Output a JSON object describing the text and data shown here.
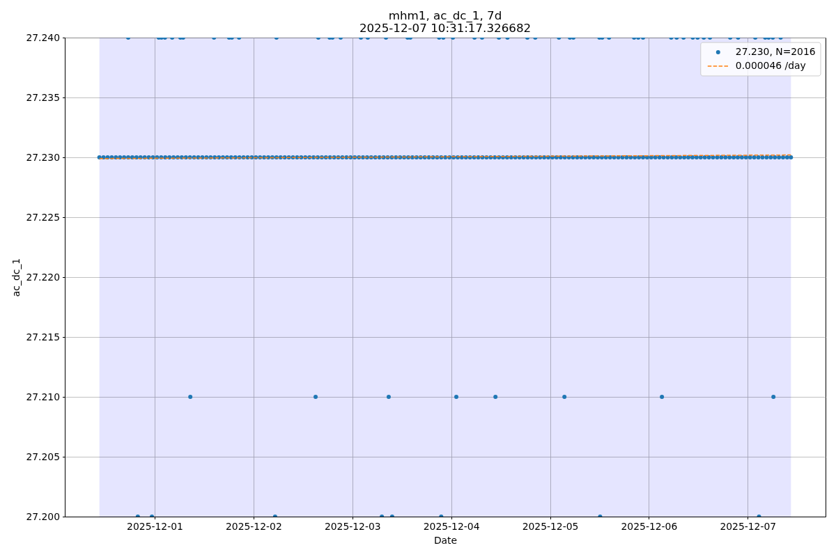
{
  "chart_data": {
    "type": "scatter",
    "title": "mhm1, ac_dc_1, 7d",
    "subtitle": "2025-12-07 10:31:17.326682",
    "xlabel": "Date",
    "ylabel": "ac_dc_1",
    "xlim": [
      "2025-11-30T02:11",
      "2025-12-07T18:54"
    ],
    "ylim": [
      27.2,
      27.24
    ],
    "xticks": [
      "2025-12-01",
      "2025-12-02",
      "2025-12-03",
      "2025-12-04",
      "2025-12-05",
      "2025-12-06",
      "2025-12-07"
    ],
    "yticks": [
      {
        "value": 27.2,
        "label": "27.200"
      },
      {
        "value": 27.205,
        "label": "27.205"
      },
      {
        "value": 27.21,
        "label": "27.210"
      },
      {
        "value": 27.215,
        "label": "27.215"
      },
      {
        "value": 27.22,
        "label": "27.220"
      },
      {
        "value": 27.225,
        "label": "27.225"
      },
      {
        "value": 27.23,
        "label": "27.230"
      },
      {
        "value": 27.235,
        "label": "27.235"
      },
      {
        "value": 27.24,
        "label": "27.240"
      }
    ],
    "grid": true,
    "legend": "top right",
    "bands": [
      {
        "axis": "x",
        "from": "2025-11-30T10:35",
        "to": "2025-12-07T10:30",
        "color": "#e5e5ff"
      }
    ],
    "series": [
      {
        "name": "27.230, N=2016",
        "color": "#1f77b4",
        "marker": "circle",
        "x": [
          "2025-11-30T10:35",
          "2025-11-30T11:35",
          "2025-11-30T12:35",
          "2025-11-30T13:35",
          "2025-11-30T14:35",
          "2025-11-30T15:35",
          "2025-11-30T16:35",
          "2025-11-30T17:35",
          "2025-11-30T18:35",
          "2025-11-30T19:35",
          "2025-11-30T20:35",
          "2025-11-30T21:35",
          "2025-11-30T22:35",
          "2025-11-30T23:35",
          "2025-12-01T00:35",
          "2025-12-01T01:35",
          "2025-12-01T02:35",
          "2025-12-01T03:35",
          "2025-12-01T04:35",
          "2025-12-01T05:35",
          "2025-12-01T06:35",
          "2025-12-01T07:35",
          "2025-12-01T08:35",
          "2025-12-01T09:35",
          "2025-12-01T10:35",
          "2025-12-01T11:35",
          "2025-12-01T12:35",
          "2025-12-01T13:35",
          "2025-12-01T14:35",
          "2025-12-01T15:35",
          "2025-12-01T16:35",
          "2025-12-01T17:35",
          "2025-12-01T18:35",
          "2025-12-01T19:35",
          "2025-12-01T20:35",
          "2025-12-01T21:35",
          "2025-12-01T22:35",
          "2025-12-01T23:35",
          "2025-12-02T00:35",
          "2025-12-02T01:35",
          "2025-12-02T02:35",
          "2025-12-02T03:35",
          "2025-12-02T04:35",
          "2025-12-02T05:35",
          "2025-12-02T06:35",
          "2025-12-02T07:35",
          "2025-12-02T08:35",
          "2025-12-02T09:35",
          "2025-12-02T10:35",
          "2025-12-02T11:35",
          "2025-12-02T12:35",
          "2025-12-02T13:35",
          "2025-12-02T14:35",
          "2025-12-02T15:35",
          "2025-12-02T16:35",
          "2025-12-02T17:35",
          "2025-12-02T18:35",
          "2025-12-02T19:35",
          "2025-12-02T20:35",
          "2025-12-02T21:35",
          "2025-12-02T22:35",
          "2025-12-02T23:35",
          "2025-12-03T00:35",
          "2025-12-03T01:35",
          "2025-12-03T02:35",
          "2025-12-03T03:35",
          "2025-12-03T04:35",
          "2025-12-03T05:35",
          "2025-12-03T06:35",
          "2025-12-03T07:35",
          "2025-12-03T08:35",
          "2025-12-03T09:35",
          "2025-12-03T10:35",
          "2025-12-03T11:35",
          "2025-12-03T12:35",
          "2025-12-03T13:35",
          "2025-12-03T14:35",
          "2025-12-03T15:35",
          "2025-12-03T16:35",
          "2025-12-03T17:35",
          "2025-12-03T18:35",
          "2025-12-03T19:35",
          "2025-12-03T20:35",
          "2025-12-03T21:35",
          "2025-12-03T22:35",
          "2025-12-03T23:35",
          "2025-12-04T00:35",
          "2025-12-04T01:35",
          "2025-12-04T02:35",
          "2025-12-04T03:35",
          "2025-12-04T04:35",
          "2025-12-04T05:35",
          "2025-12-04T06:35",
          "2025-12-04T07:35",
          "2025-12-04T08:35",
          "2025-12-04T09:35",
          "2025-12-04T10:35",
          "2025-12-04T11:35",
          "2025-12-04T12:35",
          "2025-12-04T13:35",
          "2025-12-04T14:35",
          "2025-12-04T15:35",
          "2025-12-04T16:35",
          "2025-12-04T17:35",
          "2025-12-04T18:35",
          "2025-12-04T19:35",
          "2025-12-04T20:35",
          "2025-12-04T21:35",
          "2025-12-04T22:35",
          "2025-12-04T23:35",
          "2025-12-05T00:35",
          "2025-12-05T01:35",
          "2025-12-05T02:35",
          "2025-12-05T03:35",
          "2025-12-05T04:35",
          "2025-12-05T05:35",
          "2025-12-05T06:35",
          "2025-12-05T07:35",
          "2025-12-05T08:35",
          "2025-12-05T09:35",
          "2025-12-05T10:35",
          "2025-12-05T11:35",
          "2025-12-05T12:35",
          "2025-12-05T13:35",
          "2025-12-05T14:35",
          "2025-12-05T15:35",
          "2025-12-05T16:35",
          "2025-12-05T17:35",
          "2025-12-05T18:35",
          "2025-12-05T19:35",
          "2025-12-05T20:35",
          "2025-12-05T21:35",
          "2025-12-05T22:35",
          "2025-12-05T23:35",
          "2025-12-06T00:35",
          "2025-12-06T01:35",
          "2025-12-06T02:35",
          "2025-12-06T03:35",
          "2025-12-06T04:35",
          "2025-12-06T05:35",
          "2025-12-06T06:35",
          "2025-12-06T07:35",
          "2025-12-06T08:35",
          "2025-12-06T09:35",
          "2025-12-06T10:35",
          "2025-12-06T11:35",
          "2025-12-06T12:35",
          "2025-12-06T13:35",
          "2025-12-06T14:35",
          "2025-12-06T15:35",
          "2025-12-06T16:35",
          "2025-12-06T17:35",
          "2025-12-06T18:35",
          "2025-12-06T19:35",
          "2025-12-06T20:35",
          "2025-12-06T21:35",
          "2025-12-06T22:35",
          "2025-12-06T23:35",
          "2025-12-07T00:35",
          "2025-12-07T01:35",
          "2025-12-07T02:35",
          "2025-12-07T03:35",
          "2025-12-07T04:35",
          "2025-12-07T05:35",
          "2025-12-07T06:35",
          "2025-12-07T07:35",
          "2025-12-07T08:35",
          "2025-12-07T09:35",
          "2025-12-07T10:30",
          "2025-11-30T17:35",
          "2025-12-01T01:00",
          "2025-12-01T01:40",
          "2025-12-01T02:30",
          "2025-12-01T04:15",
          "2025-12-01T06:15",
          "2025-12-01T06:55",
          "2025-12-01T14:25",
          "2025-12-01T18:05",
          "2025-12-01T18:45",
          "2025-12-01T20:30",
          "2025-12-02T05:35",
          "2025-12-02T15:45",
          "2025-12-02T18:30",
          "2025-12-02T19:10",
          "2025-12-02T21:10",
          "2025-12-03T02:05",
          "2025-12-03T03:45",
          "2025-12-03T08:10",
          "2025-12-03T13:25",
          "2025-12-03T14:05",
          "2025-12-03T21:05",
          "2025-12-03T22:05",
          "2025-12-04T00:25",
          "2025-12-04T05:40",
          "2025-12-04T07:30",
          "2025-12-04T11:35",
          "2025-12-04T13:40",
          "2025-12-04T18:30",
          "2025-12-04T20:25",
          "2025-12-05T02:10",
          "2025-12-05T04:50",
          "2025-12-05T05:40",
          "2025-12-05T12:00",
          "2025-12-05T12:40",
          "2025-12-05T14:20",
          "2025-12-05T20:25",
          "2025-12-05T21:25",
          "2025-12-05T22:35",
          "2025-12-06T05:25",
          "2025-12-06T06:45",
          "2025-12-06T08:25",
          "2025-12-06T10:40",
          "2025-12-06T11:50",
          "2025-12-06T13:20",
          "2025-12-06T14:50",
          "2025-12-06T19:45",
          "2025-12-06T21:40",
          "2025-12-07T01:50",
          "2025-12-07T04:15",
          "2025-12-07T05:05",
          "2025-12-07T06:05",
          "2025-12-07T08:00",
          "2025-12-01T08:40",
          "2025-12-02T15:05",
          "2025-12-03T08:50",
          "2025-12-04T01:15",
          "2025-12-04T10:45",
          "2025-12-05T03:30",
          "2025-12-06T03:10",
          "2025-12-07T06:15",
          "2025-11-30T19:55",
          "2025-11-30T23:20",
          "2025-12-02T05:15",
          "2025-12-03T07:10",
          "2025-12-03T09:40",
          "2025-12-03T21:35",
          "2025-12-05T12:10",
          "2025-12-07T02:45"
        ],
        "values": [
          27.23,
          27.23,
          27.23,
          27.23,
          27.23,
          27.23,
          27.23,
          27.23,
          27.23,
          27.23,
          27.23,
          27.23,
          27.23,
          27.23,
          27.23,
          27.23,
          27.23,
          27.23,
          27.23,
          27.23,
          27.23,
          27.23,
          27.23,
          27.23,
          27.23,
          27.23,
          27.23,
          27.23,
          27.23,
          27.23,
          27.23,
          27.23,
          27.23,
          27.23,
          27.23,
          27.23,
          27.23,
          27.23,
          27.23,
          27.23,
          27.23,
          27.23,
          27.23,
          27.23,
          27.23,
          27.23,
          27.23,
          27.23,
          27.23,
          27.23,
          27.23,
          27.23,
          27.23,
          27.23,
          27.23,
          27.23,
          27.23,
          27.23,
          27.23,
          27.23,
          27.23,
          27.23,
          27.23,
          27.23,
          27.23,
          27.23,
          27.23,
          27.23,
          27.23,
          27.23,
          27.23,
          27.23,
          27.23,
          27.23,
          27.23,
          27.23,
          27.23,
          27.23,
          27.23,
          27.23,
          27.23,
          27.23,
          27.23,
          27.23,
          27.23,
          27.23,
          27.23,
          27.23,
          27.23,
          27.23,
          27.23,
          27.23,
          27.23,
          27.23,
          27.23,
          27.23,
          27.23,
          27.23,
          27.23,
          27.23,
          27.23,
          27.23,
          27.23,
          27.23,
          27.23,
          27.23,
          27.23,
          27.23,
          27.23,
          27.23,
          27.23,
          27.23,
          27.23,
          27.23,
          27.23,
          27.23,
          27.23,
          27.23,
          27.23,
          27.23,
          27.23,
          27.23,
          27.23,
          27.23,
          27.23,
          27.23,
          27.23,
          27.23,
          27.23,
          27.23,
          27.23,
          27.23,
          27.23,
          27.23,
          27.23,
          27.23,
          27.23,
          27.23,
          27.23,
          27.23,
          27.23,
          27.23,
          27.23,
          27.23,
          27.23,
          27.23,
          27.23,
          27.23,
          27.23,
          27.23,
          27.23,
          27.23,
          27.23,
          27.23,
          27.23,
          27.23,
          27.23,
          27.23,
          27.23,
          27.23,
          27.23,
          27.23,
          27.23,
          27.23,
          27.23,
          27.23,
          27.23,
          27.23,
          27.23,
          27.24,
          27.24,
          27.24,
          27.24,
          27.24,
          27.24,
          27.24,
          27.24,
          27.24,
          27.24,
          27.24,
          27.24,
          27.24,
          27.24,
          27.24,
          27.24,
          27.24,
          27.24,
          27.24,
          27.24,
          27.24,
          27.24,
          27.24,
          27.24,
          27.24,
          27.24,
          27.24,
          27.24,
          27.24,
          27.24,
          27.24,
          27.24,
          27.24,
          27.24,
          27.24,
          27.24,
          27.24,
          27.24,
          27.24,
          27.24,
          27.24,
          27.24,
          27.24,
          27.24,
          27.24,
          27.24,
          27.24,
          27.24,
          27.24,
          27.24,
          27.24,
          27.24,
          27.24,
          27.21,
          27.21,
          27.21,
          27.21,
          27.21,
          27.21,
          27.21,
          27.21,
          27.2,
          27.2,
          27.2,
          27.2,
          27.2,
          27.2,
          27.2,
          27.2
        ]
      },
      {
        "name": "0.000046 /day",
        "type": "line",
        "color": "#ff7f0e",
        "line_style": "dashed",
        "x": [
          "2025-11-30T10:35",
          "2025-12-07T10:30"
        ],
        "values": [
          27.2299,
          27.2302
        ]
      }
    ]
  }
}
